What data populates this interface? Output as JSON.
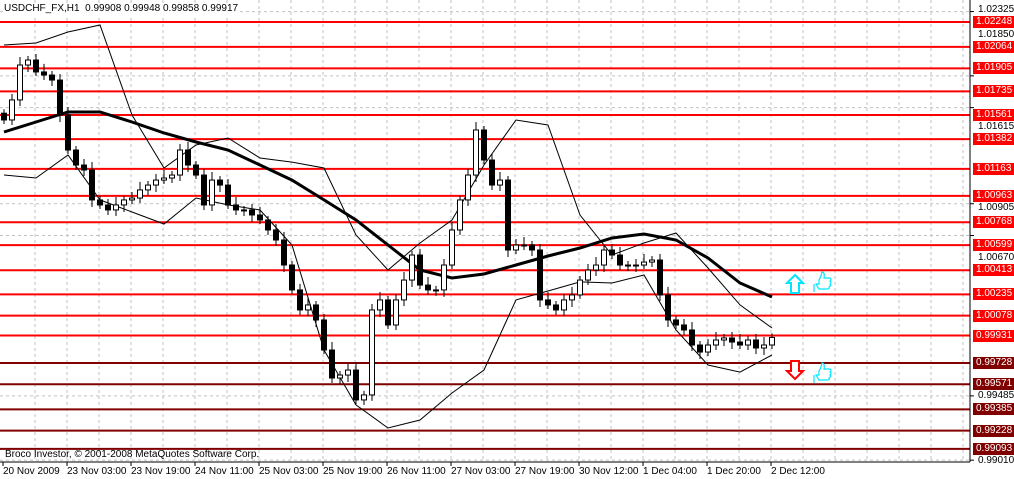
{
  "header": {
    "symbol": "USDCHF_FX,H1",
    "ohlc": "0.99908 0.99948 0.99858 0.99917"
  },
  "footer": {
    "copyright": "Broco Investor, © 2001-2008 MetaQuotes Software Corp."
  },
  "colors": {
    "resistance": "#ff0000",
    "support": "#800000",
    "up_arrow": "#00e5ff",
    "down_arrow": "#ff0000",
    "thumb": "#00e5ff",
    "grid": "#c0c0c0"
  },
  "icons": {
    "up_signal": "up-arrow-icon",
    "down_signal": "down-arrow-icon",
    "thumbs": "thumbs-up-icon"
  },
  "chart_data": {
    "type": "candlestick",
    "symbol": "USDCHF_FX",
    "timeframe": "H1",
    "ylim": [
      0.9901,
      1.02325
    ],
    "grid": true,
    "y_ticks": [
      "1.02325",
      "1.01850",
      "1.01615",
      "1.00905",
      "1.00670",
      "0.99485",
      "0.99010"
    ],
    "x_ticks": [
      "20 Nov 2009",
      "23 Nov 03:00",
      "23 Nov 19:00",
      "24 Nov 11:00",
      "25 Nov 03:00",
      "25 Nov 19:00",
      "26 Nov 11:00",
      "27 Nov 03:00",
      "27 Nov 19:00",
      "30 Nov 12:00",
      "1 Dec 04:00",
      "1 Dec 20:00",
      "2 Dec 12:00"
    ],
    "closes": [
      1.01524,
      1.01672,
      1.0193,
      1.01967,
      1.01879,
      1.01856,
      1.01819,
      1.01561,
      1.01302,
      1.01191,
      1.01154,
      1.00933,
      1.00896,
      1.00859,
      1.00896,
      1.00933,
      1.00947,
      1.01007,
      1.01043,
      1.0108,
      1.01095,
      1.01117,
      1.01302,
      1.01191,
      1.01117,
      1.00896,
      1.0108,
      1.01043,
      1.00896,
      1.00859,
      1.00859,
      1.00822,
      1.00785,
      1.00711,
      1.00637,
      1.00452,
      1.00268,
      1.0012,
      1.00157,
      1.00046,
      0.99824,
      0.99617,
      0.99639,
      0.99676,
      0.99455,
      0.99492,
      1.0012,
      1.00194,
      1.00009,
      1.00194,
      1.00341,
      1.00526,
      1.00304,
      1.00268,
      1.00268,
      1.00452,
      1.00711,
      1.00933,
      1.01117,
      1.0145,
      1.01228,
      1.01043,
      1.0108,
      1.00563,
      1.006,
      1.006,
      1.00563,
      1.00194,
      1.00157,
      1.0012,
      1.00194,
      1.00231,
      1.00341,
      1.00415,
      1.00452,
      1.00563,
      1.00526,
      1.00452,
      1.00452,
      1.00452,
      1.00474,
      1.00489,
      1.00231,
      1.00046,
      1.00009,
      0.99972,
      0.99861,
      0.99809,
      0.99861,
      0.99898,
      0.99913,
      0.99883,
      0.99861,
      0.99898,
      0.99839,
      0.99861,
      0.99917
    ],
    "moving_average": [
      1.01435,
      1.01509,
      1.01583,
      1.01583,
      1.01509,
      1.01428,
      1.01361,
      1.01302,
      1.01191,
      1.0108,
      1.00933,
      1.00785,
      1.006,
      1.00415,
      1.00356,
      1.00386,
      1.00452,
      1.00519,
      1.00578,
      1.00652,
      1.00681,
      1.00637,
      1.00504,
      1.00319,
      1.00216
    ],
    "bollinger_upper": [
      1.02078,
      1.02093,
      1.02174,
      1.02226,
      1.01561,
      1.01169,
      1.01339,
      1.01391,
      1.01243,
      1.01213,
      1.01169,
      1.00674,
      1.00415,
      1.00615,
      1.00785,
      1.01191,
      1.01524,
      1.01487,
      1.00822,
      1.00526,
      1.00615,
      1.00689,
      1.0043,
      1.00157,
      0.99987
    ],
    "bollinger_lower": [
      1.01117,
      1.01095,
      1.01265,
      1.00933,
      1.00844,
      1.00755,
      1.00947,
      1.00896,
      1.00859,
      1.006,
      0.99824,
      0.99418,
      0.99248,
      0.99307,
      0.99506,
      0.99676,
      1.00194,
      1.0026,
      1.00327,
      1.00319,
      1.00378,
      0.99972,
      0.99713,
      0.99661,
      0.99787
    ],
    "levels": [
      {
        "price": "1.02248",
        "kind": "resistance"
      },
      {
        "price": "1.02064",
        "kind": "resistance"
      },
      {
        "price": "1.01905",
        "kind": "resistance"
      },
      {
        "price": "1.01735",
        "kind": "resistance"
      },
      {
        "price": "1.01561",
        "kind": "resistance"
      },
      {
        "price": "1.01382",
        "kind": "resistance"
      },
      {
        "price": "1.01163",
        "kind": "resistance"
      },
      {
        "price": "1.00963",
        "kind": "resistance"
      },
      {
        "price": "1.00768",
        "kind": "resistance"
      },
      {
        "price": "1.00599",
        "kind": "resistance"
      },
      {
        "price": "1.00413",
        "kind": "resistance"
      },
      {
        "price": "1.00235",
        "kind": "resistance"
      },
      {
        "price": "1.00078",
        "kind": "resistance"
      },
      {
        "price": "0.99931",
        "kind": "resistance"
      },
      {
        "price": "0.99728",
        "kind": "support"
      },
      {
        "price": "0.99571",
        "kind": "support"
      },
      {
        "price": "0.99385",
        "kind": "support"
      },
      {
        "price": "0.99228",
        "kind": "support"
      },
      {
        "price": "0.99093",
        "kind": "support"
      }
    ]
  }
}
